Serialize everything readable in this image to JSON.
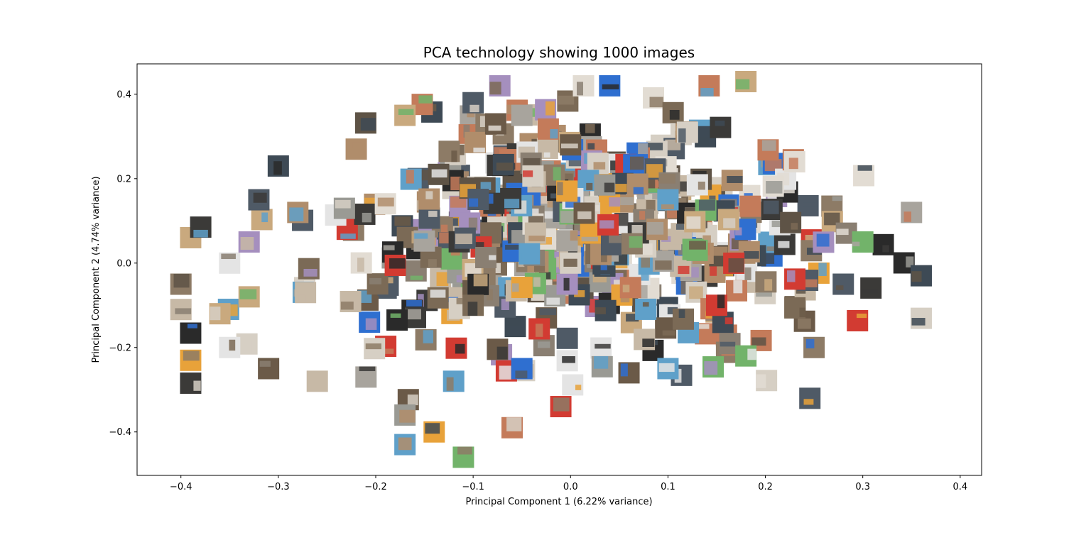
{
  "chart_data": {
    "type": "scatter",
    "title": "PCA technology showing 1000 images",
    "xlabel": "Principal Component 1 (6.22% variance)",
    "ylabel": "Principal Component 2 (4.74% variance)",
    "xlim": [
      -0.445,
      0.422
    ],
    "ylim": [
      -0.503,
      0.472
    ],
    "xticks": [
      {
        "value": -0.4,
        "label": "−0.4"
      },
      {
        "value": -0.3,
        "label": "−0.3"
      },
      {
        "value": -0.2,
        "label": "−0.2"
      },
      {
        "value": -0.1,
        "label": "−0.1"
      },
      {
        "value": 0.0,
        "label": "0.0"
      },
      {
        "value": 0.1,
        "label": "0.1"
      },
      {
        "value": 0.2,
        "label": "0.2"
      },
      {
        "value": 0.3,
        "label": "0.3"
      },
      {
        "value": 0.4,
        "label": "0.4"
      }
    ],
    "yticks": [
      {
        "value": -0.4,
        "label": "−0.4"
      },
      {
        "value": -0.2,
        "label": "−0.2"
      },
      {
        "value": 0.0,
        "label": "0.0"
      },
      {
        "value": 0.2,
        "label": "0.2"
      },
      {
        "value": 0.4,
        "label": "0.4"
      }
    ],
    "grid": false,
    "legend": "none",
    "marker": "image-thumbnail",
    "point_count_shown": 1000,
    "notable_points": [
      {
        "x": 0.18,
        "y": 0.43
      },
      {
        "x": 0.35,
        "y": 0.12
      },
      {
        "x": 0.36,
        "y": -0.03
      },
      {
        "x": 0.25,
        "y": -0.2
      },
      {
        "x": -0.4,
        "y": -0.05
      },
      {
        "x": -0.4,
        "y": -0.11
      },
      {
        "x": -0.3,
        "y": 0.23
      },
      {
        "x": -0.32,
        "y": 0.15
      },
      {
        "x": -0.17,
        "y": -0.36
      },
      {
        "x": -0.17,
        "y": -0.43
      },
      {
        "x": -0.14,
        "y": -0.4
      },
      {
        "x": -0.11,
        "y": -0.46
      },
      {
        "x": -0.06,
        "y": -0.39
      },
      {
        "x": -0.01,
        "y": -0.34
      },
      {
        "x": -0.21,
        "y": -0.27
      },
      {
        "x": -0.26,
        "y": -0.28
      },
      {
        "x": -0.31,
        "y": -0.25
      },
      {
        "x": -0.1,
        "y": 0.38
      },
      {
        "x": 0.0,
        "y": 0.28
      },
      {
        "x": 0.12,
        "y": 0.31
      },
      {
        "x": -0.17,
        "y": 0.35
      },
      {
        "x": 0.23,
        "y": 0.24
      },
      {
        "x": 0.3,
        "y": 0.05
      },
      {
        "x": 0.28,
        "y": -0.05
      },
      {
        "x": 0.18,
        "y": -0.22
      },
      {
        "x": 0.1,
        "y": -0.25
      },
      {
        "x": 0.06,
        "y": -0.26
      },
      {
        "x": -0.05,
        "y": -0.25
      },
      {
        "x": -0.12,
        "y": -0.28
      },
      {
        "x": -0.35,
        "y": -0.2
      },
      {
        "x": -0.36,
        "y": -0.12
      },
      {
        "x": -0.33,
        "y": -0.08
      },
      {
        "x": -0.35,
        "y": 0.0
      },
      {
        "x": -0.33,
        "y": 0.05
      },
      {
        "x": -0.28,
        "y": 0.12
      },
      {
        "x": -0.22,
        "y": 0.27
      },
      {
        "x": -0.05,
        "y": 0.35
      },
      {
        "x": 0.1,
        "y": 0.15
      },
      {
        "x": 0.0,
        "y": 0.0
      },
      {
        "x": -0.1,
        "y": -0.1
      },
      {
        "x": 0.15,
        "y": -0.1
      }
    ]
  },
  "colors": {
    "axes": "#000000",
    "background": "#ffffff",
    "thumbnail_palette": [
      "#8a7f72",
      "#3b3a38",
      "#c7b9a6",
      "#5e5346",
      "#a8a49d",
      "#2a2a2a",
      "#d6cfc4",
      "#7b6a56",
      "#b08d6b",
      "#4f5a66",
      "#e2dcd3",
      "#9a9a94",
      "#6b5a48",
      "#c9a97e",
      "#3e4a55",
      "#8d7b66",
      "#d23b32",
      "#2f6fd0",
      "#5fa0c9",
      "#e8a23a",
      "#72b36a",
      "#c47b5a",
      "#a58fbe",
      "#e4e4e4"
    ]
  }
}
